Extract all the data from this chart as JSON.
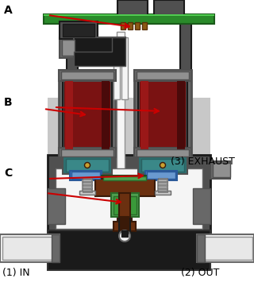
{
  "bg_color": "#ffffff",
  "label_A": "A",
  "label_B": "B",
  "label_C": "C",
  "label_1": "(1) IN",
  "label_2": "(2) OUT",
  "label_3": "(3) EXHAUST",
  "colors": {
    "pcb_green": "#2a8a2a",
    "dark_gray": "#505050",
    "mid_gray": "#686868",
    "light_gray": "#909090",
    "very_light_gray": "#c8c8c8",
    "black": "#1a1a1a",
    "near_black": "#252525",
    "dark_red": "#6a0808",
    "maroon": "#7a1212",
    "teal": "#2d7070",
    "teal_light": "#3a8888",
    "white": "#f5f5f5",
    "off_white": "#e8e8e8",
    "brown": "#6b3010",
    "dark_brown": "#3a1a08",
    "green_valve": "#50a050",
    "green_dark": "#2a6a2a",
    "blue": "#4a80c0",
    "blue_dark": "#2a5a9a",
    "connector_brown": "#8b5a14",
    "arrow_red": "#cc0000",
    "text_black": "#000000",
    "outline": "#303030",
    "olive": "#a09020",
    "gold": "#c8a030"
  }
}
